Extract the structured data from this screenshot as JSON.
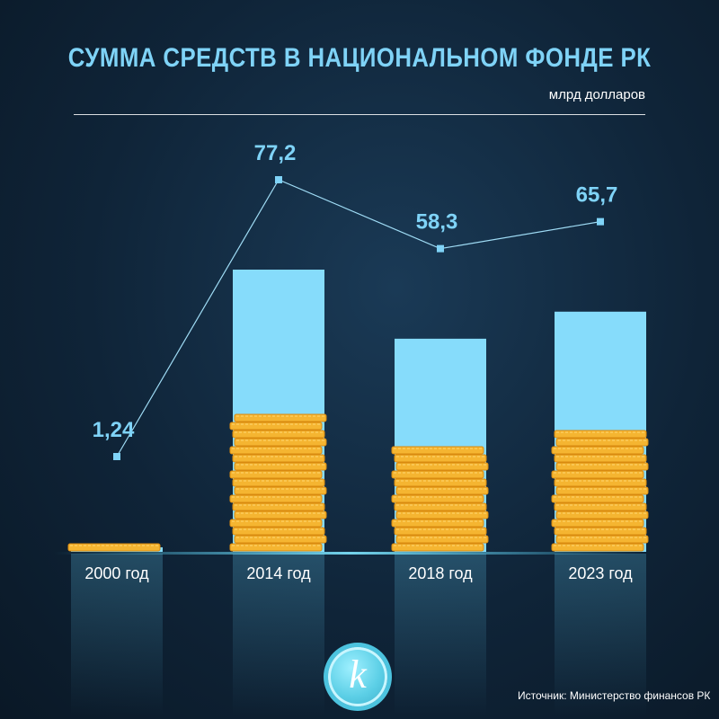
{
  "title": "СУММА СРЕДСТВ В НАЦИОНАЛЬНОМ ФОНДЕ РК",
  "unit": "млрд долларов",
  "source": "Источник: Министерство финансов РК",
  "logo_letter": "k",
  "colors": {
    "bar": "#86dcfb",
    "line": "#9fdcf5",
    "label": "#7fd3f7",
    "coin": "#f5b531",
    "coin_dark": "#d98a10"
  },
  "chart_data": {
    "type": "bar",
    "categories": [
      "2000 год",
      "2014 год",
      "2018 год",
      "2023 год"
    ],
    "values": [
      1.24,
      77.2,
      58.3,
      65.7
    ],
    "value_labels": [
      "1,24",
      "77,2",
      "58,3",
      "65,7"
    ],
    "title": "СУММА СРЕДСТВ В НАЦИОНАЛЬНОМ ФОНДЕ РК",
    "ylabel": "млрд долларов",
    "ylim": [
      0,
      80
    ],
    "grid": false,
    "legend": "none"
  }
}
